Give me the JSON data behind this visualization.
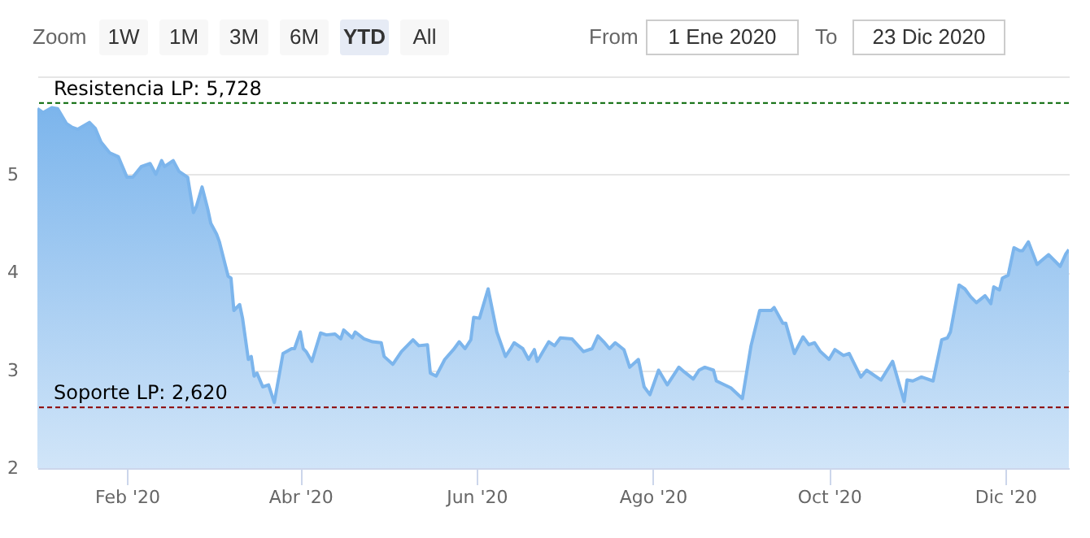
{
  "chart_data": {
    "type": "area",
    "x": [
      "2020-01-01",
      "2020-01-03",
      "2020-01-06",
      "2020-01-08",
      "2020-01-11",
      "2020-01-13",
      "2020-01-15",
      "2020-01-19",
      "2020-01-21",
      "2020-01-23",
      "2020-01-26",
      "2020-01-29",
      "2020-01-30",
      "2020-02-01",
      "2020-02-03",
      "2020-02-06",
      "2020-02-09",
      "2020-02-11",
      "2020-02-13",
      "2020-02-14",
      "2020-02-17",
      "2020-02-19",
      "2020-02-22",
      "2020-02-24",
      "2020-02-25",
      "2020-02-27",
      "2020-02-29",
      "2020-03-01",
      "2020-03-03",
      "2020-03-04",
      "2020-03-07",
      "2020-03-08",
      "2020-03-09",
      "2020-03-11",
      "2020-03-12",
      "2020-03-14",
      "2020-03-15",
      "2020-03-16",
      "2020-03-17",
      "2020-03-19",
      "2020-03-21",
      "2020-03-23",
      "2020-03-26",
      "2020-03-29",
      "2020-03-30",
      "2020-04-01",
      "2020-04-02",
      "2020-04-03",
      "2020-04-05",
      "2020-04-08",
      "2020-04-10",
      "2020-04-13",
      "2020-04-15",
      "2020-04-16",
      "2020-04-19",
      "2020-04-20",
      "2020-04-23",
      "2020-04-26",
      "2020-04-29",
      "2020-04-30",
      "2020-05-03",
      "2020-05-06",
      "2020-05-10",
      "2020-05-12",
      "2020-05-15",
      "2020-05-16",
      "2020-05-18",
      "2020-05-21",
      "2020-05-24",
      "2020-05-26",
      "2020-05-28",
      "2020-05-30",
      "2020-05-31",
      "2020-06-02",
      "2020-06-05",
      "2020-06-08",
      "2020-06-11",
      "2020-06-13",
      "2020-06-14",
      "2020-06-17",
      "2020-06-19",
      "2020-06-21",
      "2020-06-22",
      "2020-06-24",
      "2020-06-26",
      "2020-06-28",
      "2020-06-30",
      "2020-07-04",
      "2020-07-08",
      "2020-07-11",
      "2020-07-13",
      "2020-07-15",
      "2020-07-17",
      "2020-07-19",
      "2020-07-22",
      "2020-07-24",
      "2020-07-27",
      "2020-07-29",
      "2020-07-31",
      "2020-08-03",
      "2020-08-06",
      "2020-08-10",
      "2020-08-12",
      "2020-08-15",
      "2020-08-17",
      "2020-08-19",
      "2020-08-22",
      "2020-08-23",
      "2020-08-28",
      "2020-09-01",
      "2020-09-04",
      "2020-09-07",
      "2020-09-11",
      "2020-09-12",
      "2020-09-15",
      "2020-09-16",
      "2020-09-19",
      "2020-09-22",
      "2020-09-24",
      "2020-09-26",
      "2020-09-28",
      "2020-10-01",
      "2020-10-03",
      "2020-10-06",
      "2020-10-08",
      "2020-10-12",
      "2020-10-14",
      "2020-10-19",
      "2020-10-23",
      "2020-10-27",
      "2020-10-28",
      "2020-10-30",
      "2020-11-02",
      "2020-11-06",
      "2020-11-09",
      "2020-11-11",
      "2020-11-12",
      "2020-11-15",
      "2020-11-17",
      "2020-11-19",
      "2020-11-21",
      "2020-11-24",
      "2020-11-26",
      "2020-11-27",
      "2020-11-29",
      "2020-11-30",
      "2020-12-02",
      "2020-12-04",
      "2020-12-06",
      "2020-12-07",
      "2020-12-09",
      "2020-12-12",
      "2020-12-16",
      "2020-12-20",
      "2020-12-22",
      "2020-12-23"
    ],
    "series": [
      {
        "color": "#7cb5ec",
        "values": [
          5.67,
          5.63,
          5.68,
          5.67,
          5.52,
          5.48,
          5.46,
          5.53,
          5.47,
          5.33,
          5.22,
          5.18,
          5.11,
          4.97,
          4.97,
          5.08,
          5.11,
          5.0,
          5.14,
          5.08,
          5.14,
          5.03,
          4.97,
          4.61,
          4.67,
          4.87,
          4.64,
          4.5,
          4.39,
          4.31,
          3.96,
          3.94,
          3.61,
          3.67,
          3.53,
          3.11,
          3.14,
          2.94,
          2.97,
          2.83,
          2.85,
          2.67,
          3.17,
          3.22,
          3.22,
          3.39,
          3.22,
          3.19,
          3.09,
          3.38,
          3.36,
          3.37,
          3.32,
          3.41,
          3.33,
          3.39,
          3.32,
          3.29,
          3.28,
          3.14,
          3.06,
          3.19,
          3.31,
          3.25,
          3.26,
          2.97,
          2.94,
          3.11,
          3.21,
          3.29,
          3.22,
          3.31,
          3.54,
          3.53,
          3.83,
          3.39,
          3.14,
          3.23,
          3.28,
          3.22,
          3.11,
          3.21,
          3.09,
          3.19,
          3.29,
          3.25,
          3.33,
          3.32,
          3.19,
          3.22,
          3.35,
          3.29,
          3.22,
          3.28,
          3.21,
          3.03,
          3.11,
          2.83,
          2.75,
          3.0,
          2.85,
          3.03,
          2.98,
          2.91,
          3.0,
          3.03,
          3.0,
          2.89,
          2.82,
          2.71,
          3.25,
          3.61,
          3.61,
          3.64,
          3.48,
          3.48,
          3.17,
          3.34,
          3.26,
          3.28,
          3.19,
          3.11,
          3.21,
          3.15,
          3.17,
          2.93,
          3.0,
          2.9,
          3.09,
          2.68,
          2.9,
          2.89,
          2.93,
          2.89,
          3.31,
          3.33,
          3.39,
          3.87,
          3.83,
          3.75,
          3.69,
          3.76,
          3.68,
          3.85,
          3.82,
          3.94,
          3.97,
          4.25,
          4.22,
          4.22,
          4.31,
          4.08,
          4.18,
          4.06,
          4.19,
          4.23
        ]
      }
    ],
    "xlim": [
      "2020-01-01",
      "2020-12-23"
    ],
    "xticks": [
      {
        "value": "2020-02-01",
        "label": "Feb '20"
      },
      {
        "value": "2020-04-01",
        "label": "Abr '20"
      },
      {
        "value": "2020-06-01",
        "label": "Jun '20"
      },
      {
        "value": "2020-08-01",
        "label": "Ago '20"
      },
      {
        "value": "2020-10-01",
        "label": "Oct '20"
      },
      {
        "value": "2020-12-01",
        "label": "Dic '20"
      }
    ],
    "ylim": [
      2,
      6
    ],
    "yticks": [
      2,
      3,
      4,
      5,
      {
        "value": 6,
        "label": null
      }
    ],
    "grid": "y",
    "ref_lines": [
      {
        "axis": "y",
        "value": 5.728,
        "label": "Resistencia LP: 5,728",
        "color": "#006400",
        "line_style": "dashed"
      },
      {
        "axis": "y",
        "value": 2.62,
        "label": "Soporte LP: 2,620",
        "color": "#8b0000",
        "line_style": "dashed"
      }
    ],
    "annotations": [
      "Zoom",
      "1W",
      "1M",
      "3M",
      "6M",
      "YTD",
      "All",
      "From",
      "1 Ene 2020",
      "To",
      "23 Dic 2020"
    ]
  }
}
